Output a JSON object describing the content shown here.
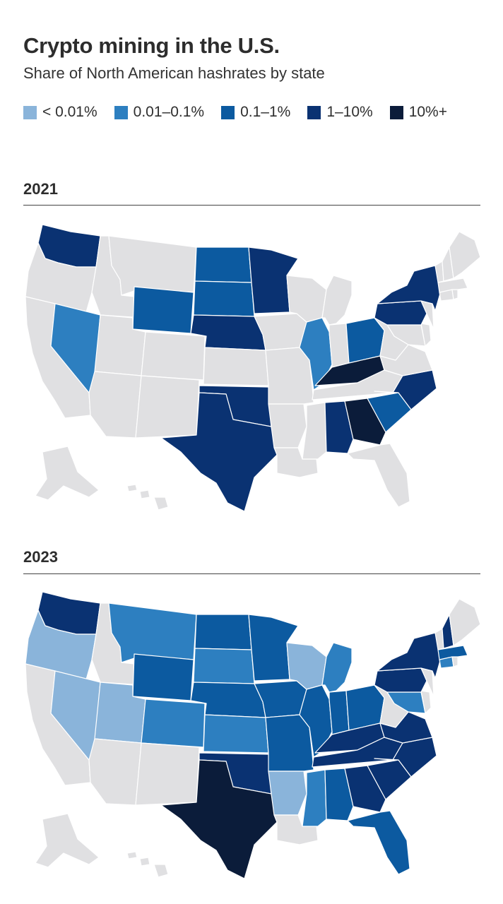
{
  "title": "Crypto mining in the U.S.",
  "subtitle": "Share of North American hashrates by state",
  "colors": {
    "none": "#e0e0e2",
    "lt0_01": "#8ab4da",
    "c0_01_0_1": "#2d7fc0",
    "c0_1_1": "#0c5aa0",
    "c1_10": "#0a3272",
    "c10plus": "#0b1c3a"
  },
  "legend": [
    {
      "key": "lt0_01",
      "label": "< 0.01%"
    },
    {
      "key": "c0_01_0_1",
      "label": "0.01–0.1%"
    },
    {
      "key": "c0_1_1",
      "label": "0.1–1%"
    },
    {
      "key": "c1_10",
      "label": "1–10%"
    },
    {
      "key": "c10plus",
      "label": "10%+"
    }
  ],
  "maps": [
    {
      "year": "2021",
      "states": {
        "WA": "c1_10",
        "NV": "c0_01_0_1",
        "WY": "c0_1_1",
        "ND": "c0_1_1",
        "SD": "c0_1_1",
        "NE": "c1_10",
        "MN": "c1_10",
        "IL": "c0_01_0_1",
        "OH": "c0_1_1",
        "KY": "c10plus",
        "TX": "c1_10",
        "OK": "c1_10",
        "AL": "c1_10",
        "GA": "c10plus",
        "SC": "c0_1_1",
        "NC": "c1_10",
        "PA": "c1_10",
        "NY": "c1_10"
      }
    },
    {
      "year": "2023",
      "states": {
        "WA": "c1_10",
        "OR": "lt0_01",
        "NV": "lt0_01",
        "UT": "lt0_01",
        "MT": "c0_01_0_1",
        "WY": "c0_1_1",
        "CO": "c0_01_0_1",
        "ND": "c0_1_1",
        "SD": "c0_01_0_1",
        "NE": "c0_1_1",
        "KS": "c0_01_0_1",
        "OK": "c1_10",
        "TX": "c10plus",
        "MN": "c0_1_1",
        "IA": "c0_1_1",
        "MO": "c0_1_1",
        "AR": "lt0_01",
        "WI": "lt0_01",
        "IL": "c0_1_1",
        "MI": "c0_01_0_1",
        "IN": "c0_1_1",
        "OH": "c0_1_1",
        "KY": "c1_10",
        "TN": "c1_10",
        "MS": "c0_01_0_1",
        "AL": "c0_1_1",
        "GA": "c1_10",
        "FL": "c0_1_1",
        "SC": "c1_10",
        "NC": "c1_10",
        "VA": "c1_10",
        "MD": "c0_01_0_1",
        "PA": "c1_10",
        "NY": "c1_10",
        "NH": "c1_10",
        "MA": "c0_1_1",
        "CT": "c0_01_0_1"
      }
    }
  ]
}
